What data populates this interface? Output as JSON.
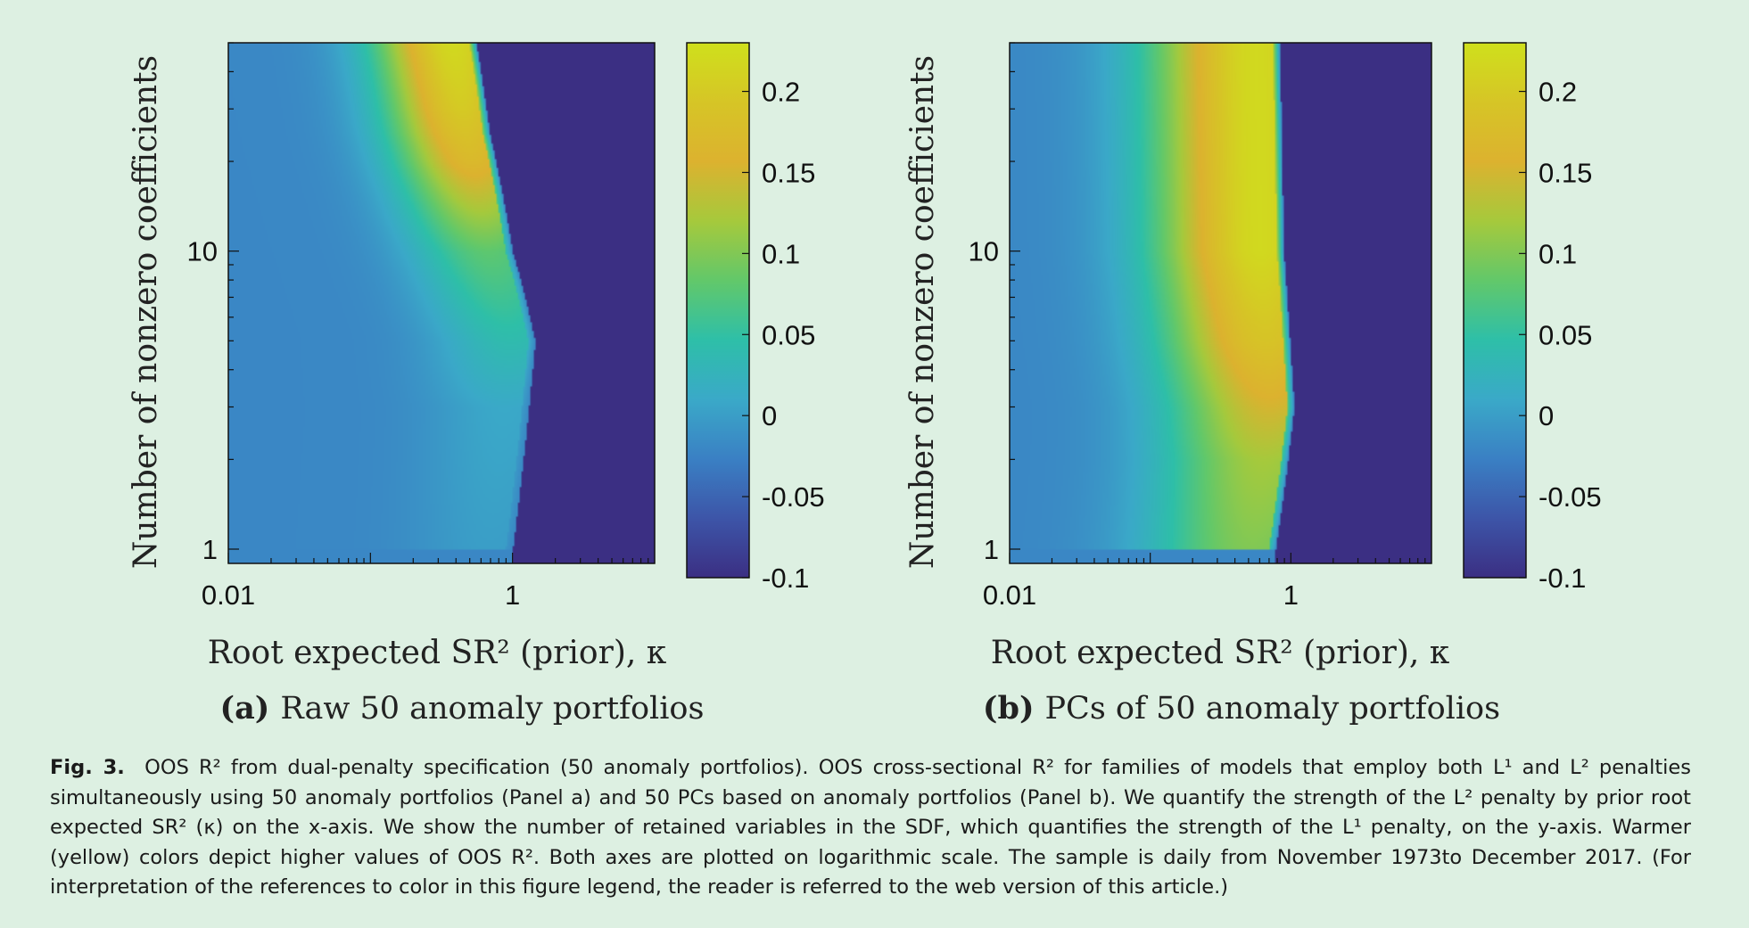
{
  "colors": {
    "background": "#ddf0e2",
    "colormap": [
      "#3b2f83",
      "#3d55a8",
      "#3a80c4",
      "#3aa9c8",
      "#2ebfa8",
      "#62c86a",
      "#a6c93c",
      "#dcb22f",
      "#d6c526",
      "#cfe01c"
    ]
  },
  "chart_data": [
    {
      "type": "heatmap",
      "panel_label": "(a)",
      "panel_title": "Raw 50 anomaly portfolios",
      "xlabel": "Root expected SR² (prior), κ",
      "ylabel": "Number of nonzero coefficients",
      "x_scale": "log",
      "y_scale": "log",
      "xlim": [
        0.01,
        10
      ],
      "ylim": [
        1,
        50
      ],
      "x_ticks": [
        {
          "value": 0.01,
          "label": "0.01"
        },
        {
          "value": 1,
          "label": "1"
        }
      ],
      "y_ticks": [
        {
          "value": 1,
          "label": "1"
        },
        {
          "value": 10,
          "label": "10"
        }
      ],
      "colorbar": {
        "range": [
          -0.1,
          0.23
        ],
        "ticks": [
          {
            "value": 0.2,
            "label": "0.2"
          },
          {
            "value": 0.15,
            "label": "0.15"
          },
          {
            "value": 0.1,
            "label": "0.1"
          },
          {
            "value": 0.05,
            "label": "0.05"
          },
          {
            "value": 0,
            "label": "0"
          },
          {
            "value": -0.05,
            "label": "-0.05"
          },
          {
            "value": -0.1,
            "label": "-0.1"
          }
        ]
      },
      "surface": {
        "baseline": -0.02,
        "floor": -0.1,
        "ridge_kappa": [
          {
            "n": 1,
            "kappa": 0.9
          },
          {
            "n": 5,
            "kappa": 1.3
          },
          {
            "n": 10,
            "kappa": 0.9
          },
          {
            "n": 25,
            "kappa": 0.62
          },
          {
            "n": 50,
            "kappa": 0.5
          }
        ],
        "peak_r2": [
          {
            "n": 1,
            "r2": 0.0
          },
          {
            "n": 3,
            "r2": 0.01
          },
          {
            "n": 10,
            "r2": 0.08
          },
          {
            "n": 20,
            "r2": 0.17
          },
          {
            "n": 30,
            "r2": 0.2
          },
          {
            "n": 50,
            "r2": 0.22
          }
        ]
      }
    },
    {
      "type": "heatmap",
      "panel_label": "(b)",
      "panel_title": "PCs of 50 anomaly portfolios",
      "xlabel": "Root expected SR² (prior), κ",
      "ylabel": "Number of nonzero coefficients",
      "x_scale": "log",
      "y_scale": "log",
      "xlim": [
        0.01,
        10
      ],
      "ylim": [
        1,
        50
      ],
      "x_ticks": [
        {
          "value": 0.01,
          "label": "0.01"
        },
        {
          "value": 1,
          "label": "1"
        }
      ],
      "y_ticks": [
        {
          "value": 1,
          "label": "1"
        },
        {
          "value": 10,
          "label": "10"
        }
      ],
      "colorbar": {
        "range": [
          -0.1,
          0.23
        ],
        "ticks": [
          {
            "value": 0.2,
            "label": "0.2"
          },
          {
            "value": 0.15,
            "label": "0.15"
          },
          {
            "value": 0.1,
            "label": "0.1"
          },
          {
            "value": 0.05,
            "label": "0.05"
          },
          {
            "value": 0,
            "label": "0"
          },
          {
            "value": -0.05,
            "label": "-0.05"
          },
          {
            "value": -0.1,
            "label": "-0.1"
          }
        ]
      },
      "surface": {
        "baseline": -0.02,
        "floor": -0.1,
        "ridge_kappa": [
          {
            "n": 1,
            "kappa": 0.7
          },
          {
            "n": 3,
            "kappa": 0.95
          },
          {
            "n": 10,
            "kappa": 0.8
          },
          {
            "n": 50,
            "kappa": 0.75
          }
        ],
        "peak_r2": [
          {
            "n": 1,
            "r2": 0.1
          },
          {
            "n": 2,
            "r2": 0.12
          },
          {
            "n": 5,
            "r2": 0.19
          },
          {
            "n": 10,
            "r2": 0.22
          },
          {
            "n": 50,
            "r2": 0.22
          }
        ]
      }
    }
  ],
  "caption": {
    "label": "Fig. 3.",
    "text": "OOS R² from dual-penalty specification (50 anomaly portfolios). OOS cross-sectional R² for families of models that employ both L¹ and L² penalties simultaneously using 50 anomaly portfolios (Panel a) and 50 PCs based on anomaly portfolios (Panel b). We quantify the strength of the L² penalty by prior root expected SR² (κ) on the x-axis. We show the number of retained variables in the SDF, which quantifies the strength of the L¹ penalty, on the y-axis. Warmer (yellow) colors depict higher values of OOS R². Both axes are plotted on logarithmic scale. The sample is daily from November 1973to December 2017. (For interpretation of the references to color in this figure legend, the reader is referred to the web version of this article.)"
  }
}
